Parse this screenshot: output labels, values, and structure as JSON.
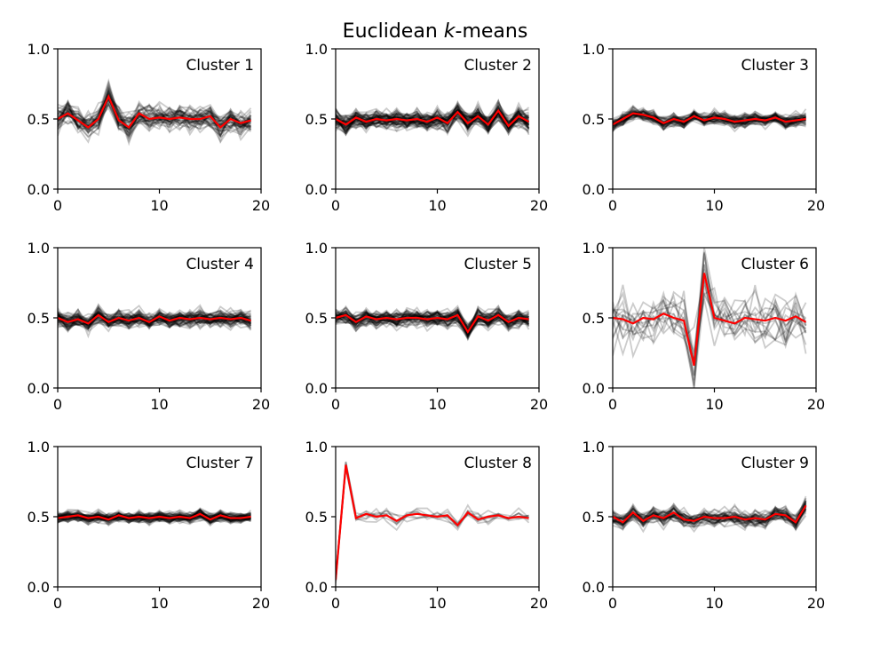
{
  "figure": {
    "title_prefix": "Euclidean ",
    "title_k": "k",
    "title_suffix": "-means"
  },
  "chart_data": {
    "type": "line",
    "title": "Euclidean k-means",
    "xlim": [
      0,
      20
    ],
    "ylim": [
      0,
      1
    ],
    "xticks": [
      "0",
      "10",
      "20"
    ],
    "yticks": [
      "0.0",
      "0.5",
      "1.0"
    ],
    "colors": {
      "centroid": "#ff0000",
      "member": "#000000",
      "axes": "#000000"
    },
    "panels": [
      {
        "label": "Cluster 1",
        "member_count": 40,
        "member_spread": 0.09,
        "centroid": [
          0.5,
          0.54,
          0.49,
          0.44,
          0.5,
          0.66,
          0.49,
          0.44,
          0.54,
          0.5,
          0.51,
          0.5,
          0.51,
          0.5,
          0.5,
          0.52,
          0.44,
          0.5,
          0.47,
          0.49
        ]
      },
      {
        "label": "Cluster 2",
        "member_count": 60,
        "member_spread": 0.07,
        "centroid": [
          0.5,
          0.46,
          0.51,
          0.48,
          0.5,
          0.49,
          0.5,
          0.49,
          0.5,
          0.48,
          0.51,
          0.47,
          0.55,
          0.47,
          0.52,
          0.46,
          0.56,
          0.45,
          0.52,
          0.48
        ]
      },
      {
        "label": "Cluster 3",
        "member_count": 50,
        "member_spread": 0.05,
        "centroid": [
          0.46,
          0.5,
          0.54,
          0.53,
          0.51,
          0.47,
          0.5,
          0.48,
          0.52,
          0.49,
          0.51,
          0.5,
          0.48,
          0.49,
          0.5,
          0.49,
          0.51,
          0.48,
          0.49,
          0.5
        ]
      },
      {
        "label": "Cluster 4",
        "member_count": 55,
        "member_spread": 0.06,
        "centroid": [
          0.5,
          0.47,
          0.49,
          0.46,
          0.52,
          0.47,
          0.5,
          0.48,
          0.5,
          0.47,
          0.51,
          0.48,
          0.5,
          0.49,
          0.5,
          0.49,
          0.5,
          0.49,
          0.5,
          0.48
        ]
      },
      {
        "label": "Cluster 5",
        "member_count": 55,
        "member_spread": 0.06,
        "centroid": [
          0.5,
          0.52,
          0.47,
          0.51,
          0.49,
          0.5,
          0.49,
          0.5,
          0.5,
          0.49,
          0.5,
          0.49,
          0.52,
          0.4,
          0.51,
          0.48,
          0.52,
          0.47,
          0.5,
          0.49
        ]
      },
      {
        "label": "Cluster 6",
        "member_count": 15,
        "member_spread": 0.2,
        "centroid": [
          0.5,
          0.49,
          0.46,
          0.5,
          0.49,
          0.53,
          0.5,
          0.48,
          0.16,
          0.82,
          0.5,
          0.48,
          0.46,
          0.5,
          0.49,
          0.48,
          0.5,
          0.48,
          0.51,
          0.47
        ]
      },
      {
        "label": "Cluster 7",
        "member_count": 60,
        "member_spread": 0.04,
        "centroid": [
          0.49,
          0.5,
          0.51,
          0.49,
          0.5,
          0.48,
          0.51,
          0.49,
          0.5,
          0.49,
          0.5,
          0.49,
          0.5,
          0.49,
          0.52,
          0.48,
          0.51,
          0.49,
          0.49,
          0.5
        ]
      },
      {
        "label": "Cluster 8",
        "member_count": 8,
        "member_spread": 0.05,
        "centroid": [
          0.05,
          0.87,
          0.49,
          0.52,
          0.5,
          0.51,
          0.47,
          0.51,
          0.52,
          0.51,
          0.5,
          0.51,
          0.44,
          0.53,
          0.48,
          0.5,
          0.51,
          0.49,
          0.5,
          0.49
        ]
      },
      {
        "label": "Cluster 9",
        "member_count": 40,
        "member_spread": 0.06,
        "centroid": [
          0.5,
          0.46,
          0.53,
          0.47,
          0.51,
          0.49,
          0.53,
          0.48,
          0.47,
          0.5,
          0.49,
          0.49,
          0.5,
          0.48,
          0.49,
          0.48,
          0.52,
          0.51,
          0.46,
          0.58
        ]
      }
    ]
  }
}
